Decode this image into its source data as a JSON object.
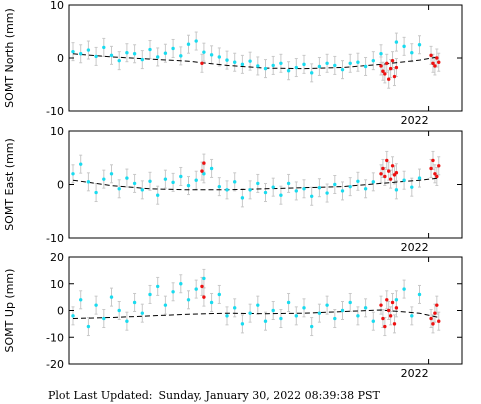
{
  "footer": {
    "label": "Plot Last Updated:",
    "timestamp": "Sunday, January 30, 2022 08:39:38 PST"
  },
  "colors": {
    "cyan_points": "#19dbef",
    "red_points": "#ee1111",
    "error_bars": "#c8c8c8",
    "trend_line": "#000000"
  },
  "chart_data": [
    {
      "type": "scatter",
      "ylabel": "SOMT North (mm)",
      "ylim": [
        -10,
        10
      ],
      "yticks": [
        -10,
        0,
        10
      ],
      "xtick_label": "2022",
      "grid": false,
      "series": [
        {
          "color": "cyan",
          "x": [
            0.0,
            0.02,
            0.04,
            0.06,
            0.08,
            0.1,
            0.12,
            0.14,
            0.16,
            0.18,
            0.2,
            0.22,
            0.24,
            0.26,
            0.28,
            0.3,
            0.32,
            0.34,
            0.36,
            0.38,
            0.4,
            0.42,
            0.44,
            0.46,
            0.48,
            0.5,
            0.52,
            0.54,
            0.56,
            0.58,
            0.6,
            0.62,
            0.64,
            0.66,
            0.68,
            0.7,
            0.72,
            0.74,
            0.76,
            0.78,
            0.8,
            0.84,
            0.86,
            0.88,
            0.9
          ],
          "y": [
            1.2,
            0.8,
            1.5,
            0.3,
            2.0,
            0.5,
            -0.5,
            1.0,
            0.8,
            -0.3,
            1.6,
            0.2,
            0.9,
            1.8,
            0.4,
            2.6,
            3.2,
            1.1,
            0.6,
            0.2,
            -0.4,
            -0.8,
            -1.2,
            -0.6,
            -1.5,
            -2.0,
            -1.4,
            -1.0,
            -2.4,
            -1.8,
            -1.2,
            -2.8,
            -1.6,
            -1.0,
            -1.4,
            -2.2,
            -1.0,
            -0.8,
            -1.6,
            -0.5,
            0.8,
            3.0,
            2.2,
            1.0,
            2.5
          ]
        },
        {
          "color": "red",
          "x": [
            0.335,
            0.8,
            0.805,
            0.81,
            0.815,
            0.82,
            0.825,
            0.83,
            0.835,
            0.84,
            0.93,
            0.935,
            0.94,
            0.945,
            0.95
          ],
          "y": [
            -1.0,
            -1.5,
            -2.5,
            -3.0,
            -1.0,
            -4.0,
            -2.0,
            -0.5,
            -3.5,
            -1.8,
            0.5,
            -1.0,
            -1.5,
            0.0,
            -0.8
          ]
        }
      ],
      "trend": {
        "x": [
          0.0,
          0.1,
          0.2,
          0.3,
          0.4,
          0.5,
          0.6,
          0.7,
          0.8,
          0.9,
          0.95
        ],
        "y": [
          0.8,
          0.2,
          -0.2,
          -0.6,
          -1.4,
          -1.9,
          -2.0,
          -1.8,
          -1.2,
          -0.4,
          0.2
        ]
      }
    },
    {
      "type": "scatter",
      "ylabel": "SOMT East (mm)",
      "ylim": [
        -10,
        10
      ],
      "yticks": [
        -10,
        0,
        10
      ],
      "xtick_label": "2022",
      "grid": false,
      "series": [
        {
          "color": "cyan",
          "x": [
            0.0,
            0.02,
            0.04,
            0.06,
            0.08,
            0.1,
            0.12,
            0.14,
            0.16,
            0.18,
            0.2,
            0.22,
            0.24,
            0.26,
            0.28,
            0.3,
            0.32,
            0.34,
            0.36,
            0.38,
            0.4,
            0.42,
            0.44,
            0.46,
            0.48,
            0.5,
            0.52,
            0.54,
            0.56,
            0.58,
            0.6,
            0.62,
            0.64,
            0.66,
            0.68,
            0.7,
            0.72,
            0.74,
            0.76,
            0.78,
            0.84,
            0.86,
            0.88,
            0.9
          ],
          "y": [
            2.0,
            3.8,
            0.5,
            -1.5,
            1.0,
            2.0,
            -0.8,
            1.2,
            0.2,
            -1.0,
            0.6,
            -2.0,
            1.0,
            0.4,
            1.5,
            -0.2,
            0.8,
            2.0,
            3.0,
            -0.4,
            -1.0,
            0.5,
            -2.5,
            -1.0,
            0.2,
            -1.5,
            -0.5,
            -2.0,
            0.2,
            -1.2,
            -0.8,
            -2.2,
            -0.6,
            -1.6,
            0.0,
            -1.2,
            -0.4,
            0.6,
            -0.8,
            0.5,
            -1.0,
            0.8,
            -0.5,
            1.2
          ]
        },
        {
          "color": "red",
          "x": [
            0.335,
            0.34,
            0.8,
            0.805,
            0.81,
            0.815,
            0.82,
            0.825,
            0.83,
            0.835,
            0.84,
            0.93,
            0.935,
            0.94,
            0.945,
            0.95
          ],
          "y": [
            2.5,
            4.0,
            2.0,
            3.0,
            1.5,
            4.5,
            2.5,
            1.0,
            3.5,
            1.8,
            2.2,
            3.0,
            4.5,
            2.0,
            1.5,
            3.5
          ]
        }
      ],
      "trend": {
        "x": [
          0.0,
          0.1,
          0.2,
          0.3,
          0.4,
          0.5,
          0.6,
          0.7,
          0.8,
          0.9,
          0.95
        ],
        "y": [
          0.8,
          -0.2,
          -0.8,
          -1.0,
          -1.0,
          -0.8,
          -0.6,
          -0.4,
          0.2,
          0.8,
          1.2
        ]
      }
    },
    {
      "type": "scatter",
      "ylabel": "SOMT Up (mm)",
      "ylim": [
        -20,
        20
      ],
      "yticks": [
        -20,
        -10,
        0,
        10,
        20
      ],
      "xtick_label": "2022",
      "grid": false,
      "series": [
        {
          "color": "cyan",
          "x": [
            0.0,
            0.02,
            0.04,
            0.06,
            0.08,
            0.1,
            0.12,
            0.14,
            0.16,
            0.18,
            0.2,
            0.22,
            0.24,
            0.26,
            0.28,
            0.3,
            0.32,
            0.34,
            0.36,
            0.38,
            0.4,
            0.42,
            0.44,
            0.46,
            0.48,
            0.5,
            0.52,
            0.54,
            0.56,
            0.58,
            0.6,
            0.62,
            0.64,
            0.66,
            0.68,
            0.7,
            0.72,
            0.74,
            0.76,
            0.78,
            0.84,
            0.86,
            0.88,
            0.9
          ],
          "y": [
            -2.0,
            4.0,
            -6.0,
            2.0,
            -3.0,
            5.0,
            0.0,
            -4.0,
            3.0,
            -1.0,
            6.0,
            9.0,
            2.0,
            7.0,
            10.0,
            4.0,
            8.0,
            12.0,
            3.0,
            6.0,
            -2.0,
            1.0,
            -5.0,
            -1.0,
            2.0,
            -4.0,
            0.0,
            -3.0,
            3.0,
            -2.0,
            1.0,
            -6.0,
            -1.0,
            2.0,
            -3.0,
            0.0,
            3.0,
            -2.0,
            1.0,
            -4.0,
            4.0,
            8.0,
            -2.0,
            6.0
          ]
        },
        {
          "color": "red",
          "x": [
            0.335,
            0.34,
            0.8,
            0.805,
            0.81,
            0.815,
            0.82,
            0.825,
            0.83,
            0.835,
            0.84,
            0.93,
            0.935,
            0.94,
            0.945,
            0.95
          ],
          "y": [
            9.0,
            5.0,
            2.0,
            -3.0,
            -6.0,
            4.0,
            0.0,
            -2.0,
            3.0,
            -5.0,
            1.0,
            -3.0,
            -5.0,
            -1.0,
            2.0,
            -4.0
          ]
        }
      ],
      "trend": {
        "x": [
          0.0,
          0.1,
          0.2,
          0.3,
          0.4,
          0.5,
          0.6,
          0.7,
          0.8,
          0.9,
          0.95
        ],
        "y": [
          -3.0,
          -2.6,
          -2.0,
          -1.4,
          -1.0,
          -1.2,
          -1.0,
          -0.4,
          0.2,
          -1.0,
          -2.6
        ]
      }
    }
  ]
}
